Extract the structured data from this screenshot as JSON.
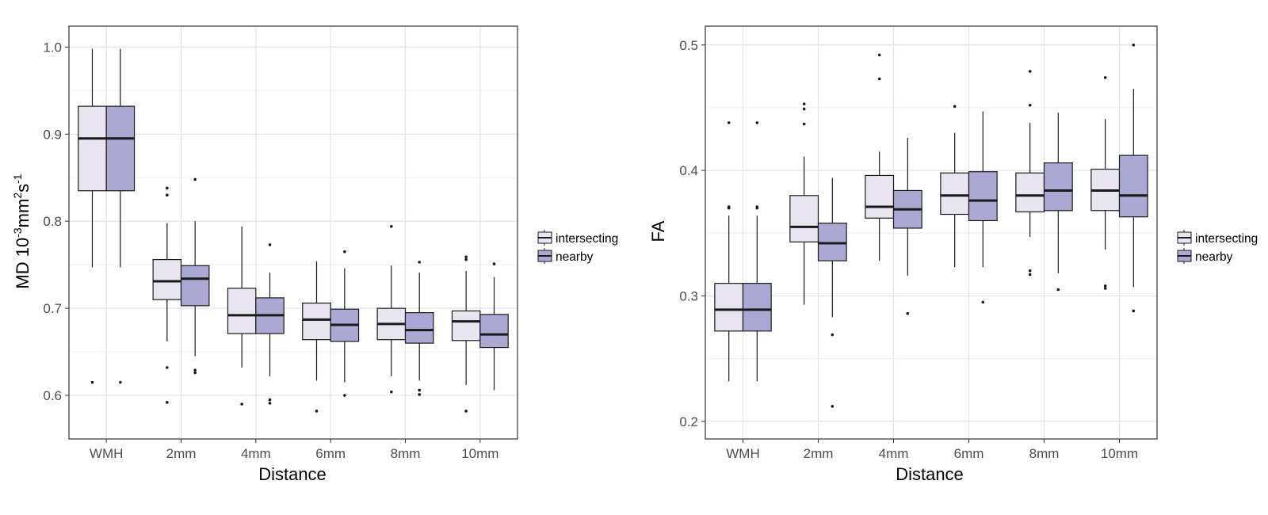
{
  "colors": {
    "intersecting": "#e8e4f0",
    "nearby": "#aba8d3",
    "panel_border": "#333333",
    "grid_major": "#e3e3e3",
    "grid_minor": "#f0f0f0",
    "box_line": "#1a1a1a"
  },
  "legend": {
    "labels": [
      "intersecting",
      "nearby"
    ]
  },
  "chart_data": [
    {
      "type": "boxplot",
      "xlabel": "Distance",
      "ylabel": {
        "prefix": "MD 10",
        "exp1": "-3",
        "mid": "mm",
        "exp2": "2",
        "mid2": "s",
        "exp3": "-1"
      },
      "categories": [
        "WMH",
        "2mm",
        "4mm",
        "6mm",
        "8mm",
        "10mm"
      ],
      "ylim": [
        0.55,
        1.024
      ],
      "yticks": [
        0.6,
        0.7,
        0.8,
        0.9,
        1.0
      ],
      "ytick_labels": [
        "0.6",
        "0.7",
        "0.8",
        "0.9",
        "1.0"
      ],
      "series": [
        {
          "name": "intersecting",
          "boxes": [
            {
              "low": 0.747,
              "q1": 0.835,
              "median": 0.895,
              "q3": 0.932,
              "high": 0.998,
              "outliers": [
                0.615
              ]
            },
            {
              "low": 0.662,
              "q1": 0.71,
              "median": 0.731,
              "q3": 0.756,
              "high": 0.798,
              "outliers": [
                0.838,
                0.83,
                0.632,
                0.592
              ]
            },
            {
              "low": 0.632,
              "q1": 0.671,
              "median": 0.692,
              "q3": 0.723,
              "high": 0.794,
              "outliers": [
                0.59
              ]
            },
            {
              "low": 0.617,
              "q1": 0.664,
              "median": 0.687,
              "q3": 0.706,
              "high": 0.754,
              "outliers": [
                0.582
              ]
            },
            {
              "low": 0.622,
              "q1": 0.664,
              "median": 0.682,
              "q3": 0.7,
              "high": 0.749,
              "outliers": [
                0.794,
                0.604
              ]
            },
            {
              "low": 0.612,
              "q1": 0.663,
              "median": 0.685,
              "q3": 0.697,
              "high": 0.743,
              "outliers": [
                0.759,
                0.756,
                0.582
              ]
            }
          ]
        },
        {
          "name": "nearby",
          "boxes": [
            {
              "low": 0.747,
              "q1": 0.835,
              "median": 0.895,
              "q3": 0.932,
              "high": 0.998,
              "outliers": [
                0.615
              ]
            },
            {
              "low": 0.645,
              "q1": 0.703,
              "median": 0.734,
              "q3": 0.749,
              "high": 0.8,
              "outliers": [
                0.848,
                0.629,
                0.626
              ]
            },
            {
              "low": 0.622,
              "q1": 0.671,
              "median": 0.692,
              "q3": 0.712,
              "high": 0.741,
              "outliers": [
                0.773,
                0.595,
                0.591
              ]
            },
            {
              "low": 0.615,
              "q1": 0.662,
              "median": 0.681,
              "q3": 0.699,
              "high": 0.746,
              "outliers": [
                0.765,
                0.6
              ]
            },
            {
              "low": 0.617,
              "q1": 0.66,
              "median": 0.675,
              "q3": 0.695,
              "high": 0.741,
              "outliers": [
                0.753,
                0.606,
                0.601
              ]
            },
            {
              "low": 0.606,
              "q1": 0.655,
              "median": 0.67,
              "q3": 0.693,
              "high": 0.736,
              "outliers": [
                0.751
              ]
            }
          ]
        }
      ]
    },
    {
      "type": "boxplot",
      "xlabel": "Distance",
      "ylabel": "FA",
      "categories": [
        "WMH",
        "2mm",
        "4mm",
        "6mm",
        "8mm",
        "10mm"
      ],
      "ylim": [
        0.186,
        0.515
      ],
      "yticks": [
        0.2,
        0.3,
        0.4,
        0.5
      ],
      "ytick_labels": [
        "0.2",
        "0.3",
        "0.4",
        "0.5"
      ],
      "series": [
        {
          "name": "intersecting",
          "boxes": [
            {
              "low": 0.232,
              "q1": 0.272,
              "median": 0.289,
              "q3": 0.31,
              "high": 0.364,
              "outliers": [
                0.438,
                0.371,
                0.37
              ]
            },
            {
              "low": 0.293,
              "q1": 0.343,
              "median": 0.355,
              "q3": 0.38,
              "high": 0.411,
              "outliers": [
                0.453,
                0.449,
                0.437
              ]
            },
            {
              "low": 0.328,
              "q1": 0.362,
              "median": 0.371,
              "q3": 0.396,
              "high": 0.415,
              "outliers": [
                0.492,
                0.473
              ]
            },
            {
              "low": 0.323,
              "q1": 0.365,
              "median": 0.38,
              "q3": 0.398,
              "high": 0.43,
              "outliers": [
                0.451
              ]
            },
            {
              "low": 0.347,
              "q1": 0.367,
              "median": 0.38,
              "q3": 0.398,
              "high": 0.438,
              "outliers": [
                0.479,
                0.452,
                0.32,
                0.317
              ]
            },
            {
              "low": 0.337,
              "q1": 0.368,
              "median": 0.384,
              "q3": 0.401,
              "high": 0.441,
              "outliers": [
                0.474,
                0.308,
                0.306
              ]
            }
          ]
        },
        {
          "name": "nearby",
          "boxes": [
            {
              "low": 0.232,
              "q1": 0.272,
              "median": 0.289,
              "q3": 0.31,
              "high": 0.364,
              "outliers": [
                0.438,
                0.371,
                0.37
              ]
            },
            {
              "low": 0.283,
              "q1": 0.328,
              "median": 0.342,
              "q3": 0.358,
              "high": 0.394,
              "outliers": [
                0.269,
                0.212
              ]
            },
            {
              "low": 0.316,
              "q1": 0.354,
              "median": 0.369,
              "q3": 0.384,
              "high": 0.426,
              "outliers": [
                0.286
              ]
            },
            {
              "low": 0.323,
              "q1": 0.36,
              "median": 0.376,
              "q3": 0.399,
              "high": 0.447,
              "outliers": [
                0.295
              ]
            },
            {
              "low": 0.318,
              "q1": 0.368,
              "median": 0.384,
              "q3": 0.406,
              "high": 0.446,
              "outliers": [
                0.305
              ]
            },
            {
              "low": 0.307,
              "q1": 0.363,
              "median": 0.38,
              "q3": 0.412,
              "high": 0.465,
              "outliers": [
                0.5,
                0.288
              ]
            }
          ]
        }
      ]
    }
  ]
}
